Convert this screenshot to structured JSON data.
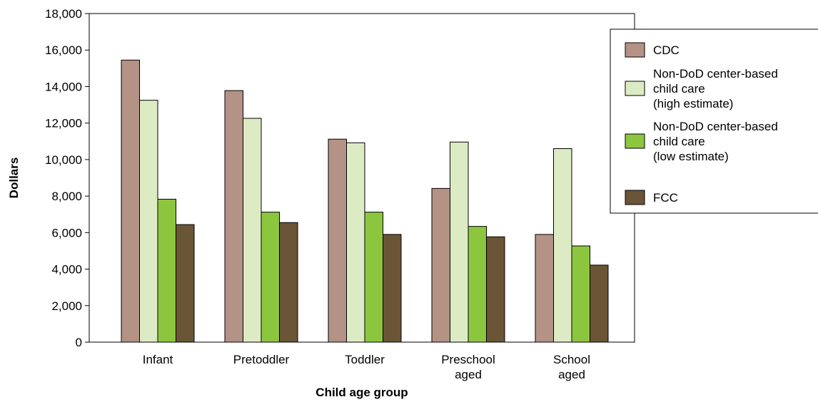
{
  "chart_data": {
    "type": "bar",
    "title": "",
    "xlabel": "Child age group",
    "ylabel": "Dollars",
    "ylim": [
      0,
      18000
    ],
    "yticks": [
      0,
      2000,
      4000,
      6000,
      8000,
      10000,
      12000,
      14000,
      16000,
      18000
    ],
    "ytick_labels": [
      "0",
      "2,000",
      "4,000",
      "6,000",
      "8,000",
      "10,000",
      "12,000",
      "14,000",
      "16,000",
      "18,000"
    ],
    "categories": [
      [
        "Infant"
      ],
      [
        "Pretoddler"
      ],
      [
        "Toddler"
      ],
      [
        "Preschool",
        "aged"
      ],
      [
        "School",
        "aged"
      ]
    ],
    "grid": false,
    "legend_position": "top-right",
    "series": [
      {
        "name": [
          "CDC"
        ],
        "color": "#b59286",
        "values": [
          15450,
          13780,
          11120,
          8420,
          5900
        ]
      },
      {
        "name": [
          "Non-DoD center-based",
          "child care",
          "(high estimate)"
        ],
        "color": "#dcebc4",
        "values": [
          13250,
          12260,
          10920,
          10960,
          10600
        ]
      },
      {
        "name": [
          "Non-DoD center-based",
          "child care",
          "(low estimate)"
        ],
        "color": "#8cc63f",
        "values": [
          7830,
          7120,
          7120,
          6340,
          5270
        ]
      },
      {
        "name": [
          "FCC"
        ],
        "color": "#6a5536",
        "values": [
          6440,
          6550,
          5900,
          5770,
          4220
        ]
      }
    ]
  }
}
